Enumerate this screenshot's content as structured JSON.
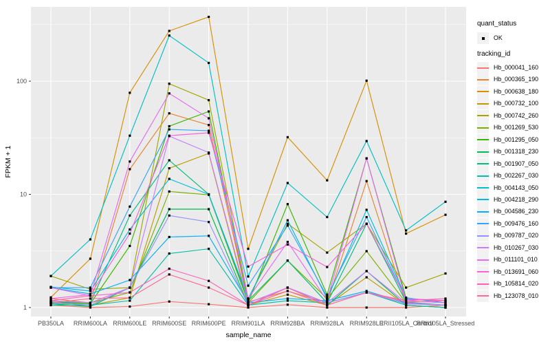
{
  "figure": {
    "background": "#FFFFFF",
    "panel_background": "#EBEBEB",
    "grid_color": "#FFFFFF",
    "point_color": "#000000",
    "tick_mark_color": "#333333",
    "tick_label_color": "#4D4D4D",
    "axis_title_color": "#000000"
  },
  "legend": {
    "quant_title": "quant_status",
    "quant_ok_label": "OK",
    "tracking_title": "tracking_id"
  },
  "chart_data": {
    "type": "line",
    "title": "",
    "xlabel": "sample_name",
    "ylabel": "FPKM + 1",
    "y_scale": "log10",
    "y_ticks": [
      1,
      10,
      100
    ],
    "y_tick_labels": [
      "1",
      "10",
      "100"
    ],
    "ylim": [
      0.83,
      455
    ],
    "grid": true,
    "legend_position": "right",
    "point_marker": {
      "label": "OK",
      "shape": "square",
      "color": "#000000"
    },
    "categories": [
      "PB350LA",
      "RRIM600LA",
      "RRIM600LE",
      "RRIM600SE",
      "RRIM600PE",
      "RRIM901LA",
      "RRIM928BA",
      "RRIM928LA",
      "RRIM928LE",
      "RRII105LA_Control",
      "RRII105LA_Stressed"
    ],
    "series": [
      {
        "name": "Hb_000041_160",
        "color": "#F8766D",
        "values": [
          1.05,
          1.0,
          1.02,
          1.13,
          1.07,
          1.0,
          1.06,
          1.0,
          1.0,
          1.0,
          1.05
        ]
      },
      {
        "name": "Hb_000365_190",
        "color": "#EA8331",
        "values": [
          1.2,
          1.1,
          16.7,
          52,
          41,
          1.12,
          1.4,
          1.1,
          13.1,
          1.08,
          1.05
        ]
      },
      {
        "name": "Hb_000638_180",
        "color": "#D89000",
        "values": [
          1.23,
          2.7,
          79,
          278,
          370,
          3.3,
          32,
          13.3,
          101,
          4.5,
          6.6
        ]
      },
      {
        "name": "Hb_000732_100",
        "color": "#C09B00",
        "values": [
          1.1,
          1.05,
          1.22,
          17,
          23,
          1.05,
          1.3,
          1.05,
          1.85,
          1.05,
          1.0
        ]
      },
      {
        "name": "Hb_000742_260",
        "color": "#A3A500",
        "values": [
          1.9,
          1.45,
          1.5,
          95,
          68,
          1.2,
          5.5,
          3.06,
          5.5,
          1.5,
          2.0
        ]
      },
      {
        "name": "Hb_001269_530",
        "color": "#7CAE00",
        "values": [
          1.15,
          1.1,
          1.36,
          10.6,
          9.9,
          1.1,
          2.6,
          1.2,
          3.15,
          1.1,
          1.05
        ]
      },
      {
        "name": "Hb_001295_050",
        "color": "#39B600",
        "values": [
          1.1,
          1.08,
          3.5,
          40,
          54,
          1.1,
          8.2,
          1.3,
          20.8,
          1.22,
          1.1
        ]
      },
      {
        "name": "Hb_001318_230",
        "color": "#00BB4E",
        "values": [
          1.08,
          1.02,
          1.5,
          7.4,
          7.4,
          1.05,
          1.5,
          1.05,
          2.1,
          1.05,
          1.0
        ]
      },
      {
        "name": "Hb_001907_050",
        "color": "#00BF7D",
        "values": [
          1.12,
          1.1,
          6.5,
          20,
          10,
          1.15,
          2.6,
          1.1,
          5.5,
          1.12,
          1.05
        ]
      },
      {
        "name": "Hb_002267_030",
        "color": "#00C1A3",
        "values": [
          1.05,
          1.05,
          1.15,
          3.0,
          3.3,
          1.05,
          1.15,
          1.1,
          1.36,
          1.05,
          1.0
        ]
      },
      {
        "name": "Hb_004143_050",
        "color": "#00BFC4",
        "values": [
          1.9,
          4.0,
          33,
          253,
          145,
          1.88,
          12.6,
          6.3,
          29.6,
          4.8,
          8.6
        ]
      },
      {
        "name": "Hb_004218_290",
        "color": "#00BAE0",
        "values": [
          1.52,
          1.4,
          4.9,
          13.7,
          10,
          1.2,
          5.9,
          1.2,
          7.3,
          1.22,
          1.1
        ]
      },
      {
        "name": "Hb_004586_230",
        "color": "#00B0F6",
        "values": [
          1.5,
          1.32,
          1.75,
          4.2,
          4.3,
          1.1,
          1.2,
          1.15,
          1.4,
          1.1,
          1.05
        ]
      },
      {
        "name": "Hb_009476_160",
        "color": "#35A2FF",
        "values": [
          1.5,
          1.5,
          7.8,
          37.5,
          36.5,
          1.56,
          5.3,
          1.25,
          6.3,
          1.18,
          1.15
        ]
      },
      {
        "name": "Hb_009787_020",
        "color": "#9590FF",
        "values": [
          1.1,
          1.05,
          1.5,
          6.5,
          5.7,
          1.05,
          1.5,
          1.1,
          1.36,
          1.08,
          1.05
        ]
      },
      {
        "name": "Hb_010267_030",
        "color": "#C77CFF",
        "values": [
          1.15,
          1.1,
          1.5,
          32.7,
          23.4,
          1.1,
          1.5,
          1.1,
          2.1,
          1.1,
          1.05
        ]
      },
      {
        "name": "Hb_011101_010",
        "color": "#E76BF3",
        "values": [
          1.5,
          1.27,
          19.5,
          78,
          47,
          1.2,
          3.8,
          1.15,
          20.8,
          1.15,
          1.1
        ]
      },
      {
        "name": "Hb_013691_060",
        "color": "#FA62DB",
        "values": [
          1.2,
          1.3,
          4.5,
          33,
          35,
          2.3,
          3.6,
          2.28,
          5.5,
          1.2,
          1.15
        ]
      },
      {
        "name": "Hb_105814_020",
        "color": "#FF62BC",
        "values": [
          1.15,
          1.27,
          1.36,
          2.2,
          1.72,
          1.05,
          1.5,
          1.05,
          1.36,
          1.15,
          1.2
        ]
      },
      {
        "name": "Hb_123078_010",
        "color": "#FF6A98",
        "values": [
          1.1,
          1.2,
          1.22,
          1.96,
          1.5,
          1.05,
          1.4,
          1.05,
          1.36,
          1.12,
          1.15
        ]
      }
    ]
  }
}
